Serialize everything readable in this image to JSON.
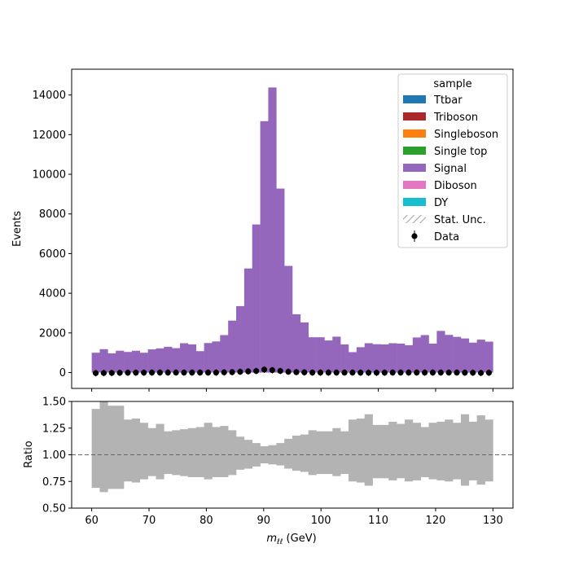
{
  "chart_data": {
    "type": "bar",
    "xlabel_main": "m",
    "xlabel_sub": "ℓℓ",
    "xlabel_unit": " (GeV)",
    "ylabel_top": "Events",
    "ylabel_bottom": "Ratio",
    "xlim": [
      56.5,
      133.5
    ],
    "ylim_top": [
      -800,
      15300
    ],
    "ylim_bottom": [
      0.5,
      1.5
    ],
    "x_ticks": [
      60,
      70,
      80,
      90,
      100,
      110,
      120,
      130
    ],
    "y_ticks_top": [
      0,
      2000,
      4000,
      6000,
      8000,
      10000,
      12000,
      14000
    ],
    "y_ticks_bottom": [
      0.5,
      0.75,
      1.0,
      1.25,
      1.5
    ],
    "y_tick_labels_bottom": [
      "0.50",
      "0.75",
      "1.00",
      "1.25",
      "1.50"
    ],
    "reference_line": 1.0,
    "bin_edges_start": 60,
    "bin_width": 1.4,
    "signal_values": [
      1000,
      1180,
      970,
      1100,
      1040,
      1100,
      1000,
      1170,
      1220,
      1300,
      1230,
      1480,
      1420,
      1080,
      1490,
      1570,
      1890,
      2620,
      3350,
      5250,
      7470,
      12680,
      14380,
      9280,
      5380,
      2940,
      2530,
      1780,
      1780,
      1620,
      1810,
      1420,
      1030,
      1280,
      1480,
      1430,
      1420,
      1480,
      1460,
      1380,
      1770,
      1890,
      1460,
      2100,
      1900,
      1800,
      1720,
      1510,
      1660,
      1560
    ],
    "data_values": [
      -30,
      -25,
      -20,
      -15,
      -10,
      -5,
      -5,
      0,
      0,
      0,
      0,
      0,
      0,
      0,
      0,
      0,
      10,
      20,
      40,
      60,
      80,
      150,
      120,
      80,
      40,
      20,
      10,
      0,
      0,
      0,
      0,
      0,
      0,
      -5,
      -10,
      -10,
      -5,
      0,
      0,
      0,
      0,
      0,
      0,
      0,
      0,
      0,
      -5,
      -10,
      -20,
      -10
    ],
    "ratio_upper": [
      1.43,
      1.5,
      1.46,
      1.46,
      1.33,
      1.34,
      1.3,
      1.25,
      1.29,
      1.22,
      1.23,
      1.24,
      1.25,
      1.26,
      1.3,
      1.26,
      1.27,
      1.23,
      1.17,
      1.14,
      1.11,
      1.08,
      1.09,
      1.11,
      1.15,
      1.18,
      1.19,
      1.23,
      1.22,
      1.22,
      1.25,
      1.22,
      1.33,
      1.34,
      1.38,
      1.28,
      1.28,
      1.31,
      1.29,
      1.33,
      1.3,
      1.26,
      1.3,
      1.31,
      1.33,
      1.3,
      1.38,
      1.31,
      1.37,
      1.33
    ],
    "ratio_lower": [
      0.69,
      0.65,
      0.68,
      0.68,
      0.75,
      0.74,
      0.77,
      0.8,
      0.77,
      0.82,
      0.81,
      0.8,
      0.79,
      0.79,
      0.77,
      0.79,
      0.79,
      0.81,
      0.86,
      0.87,
      0.89,
      0.92,
      0.91,
      0.9,
      0.87,
      0.85,
      0.84,
      0.81,
      0.82,
      0.82,
      0.8,
      0.82,
      0.75,
      0.74,
      0.71,
      0.78,
      0.78,
      0.76,
      0.78,
      0.75,
      0.76,
      0.79,
      0.77,
      0.76,
      0.75,
      0.77,
      0.71,
      0.76,
      0.72,
      0.75
    ],
    "legend": {
      "title": "sample",
      "placement": "top-right",
      "entries": [
        {
          "label": "Ttbar",
          "color": "#1f77b4",
          "kind": "patch"
        },
        {
          "label": "Triboson",
          "color": "#aa2a2a",
          "kind": "patch"
        },
        {
          "label": "Singleboson",
          "color": "#ff7f0e",
          "kind": "patch"
        },
        {
          "label": "Single top",
          "color": "#2ca02c",
          "kind": "patch"
        },
        {
          "label": "Signal",
          "color": "#9467bd",
          "kind": "patch"
        },
        {
          "label": "Diboson",
          "color": "#e377c2",
          "kind": "patch"
        },
        {
          "label": "DY",
          "color": "#17becf",
          "kind": "patch"
        },
        {
          "label": "Stat. Unc.",
          "color": "#888888",
          "kind": "hatch"
        },
        {
          "label": "Data",
          "color": "#000000",
          "kind": "marker"
        }
      ]
    },
    "colors": {
      "signal": "#9467bd",
      "ratio_band": "#b3b3b3",
      "data": "#000000",
      "reference_line": "#666666"
    }
  }
}
